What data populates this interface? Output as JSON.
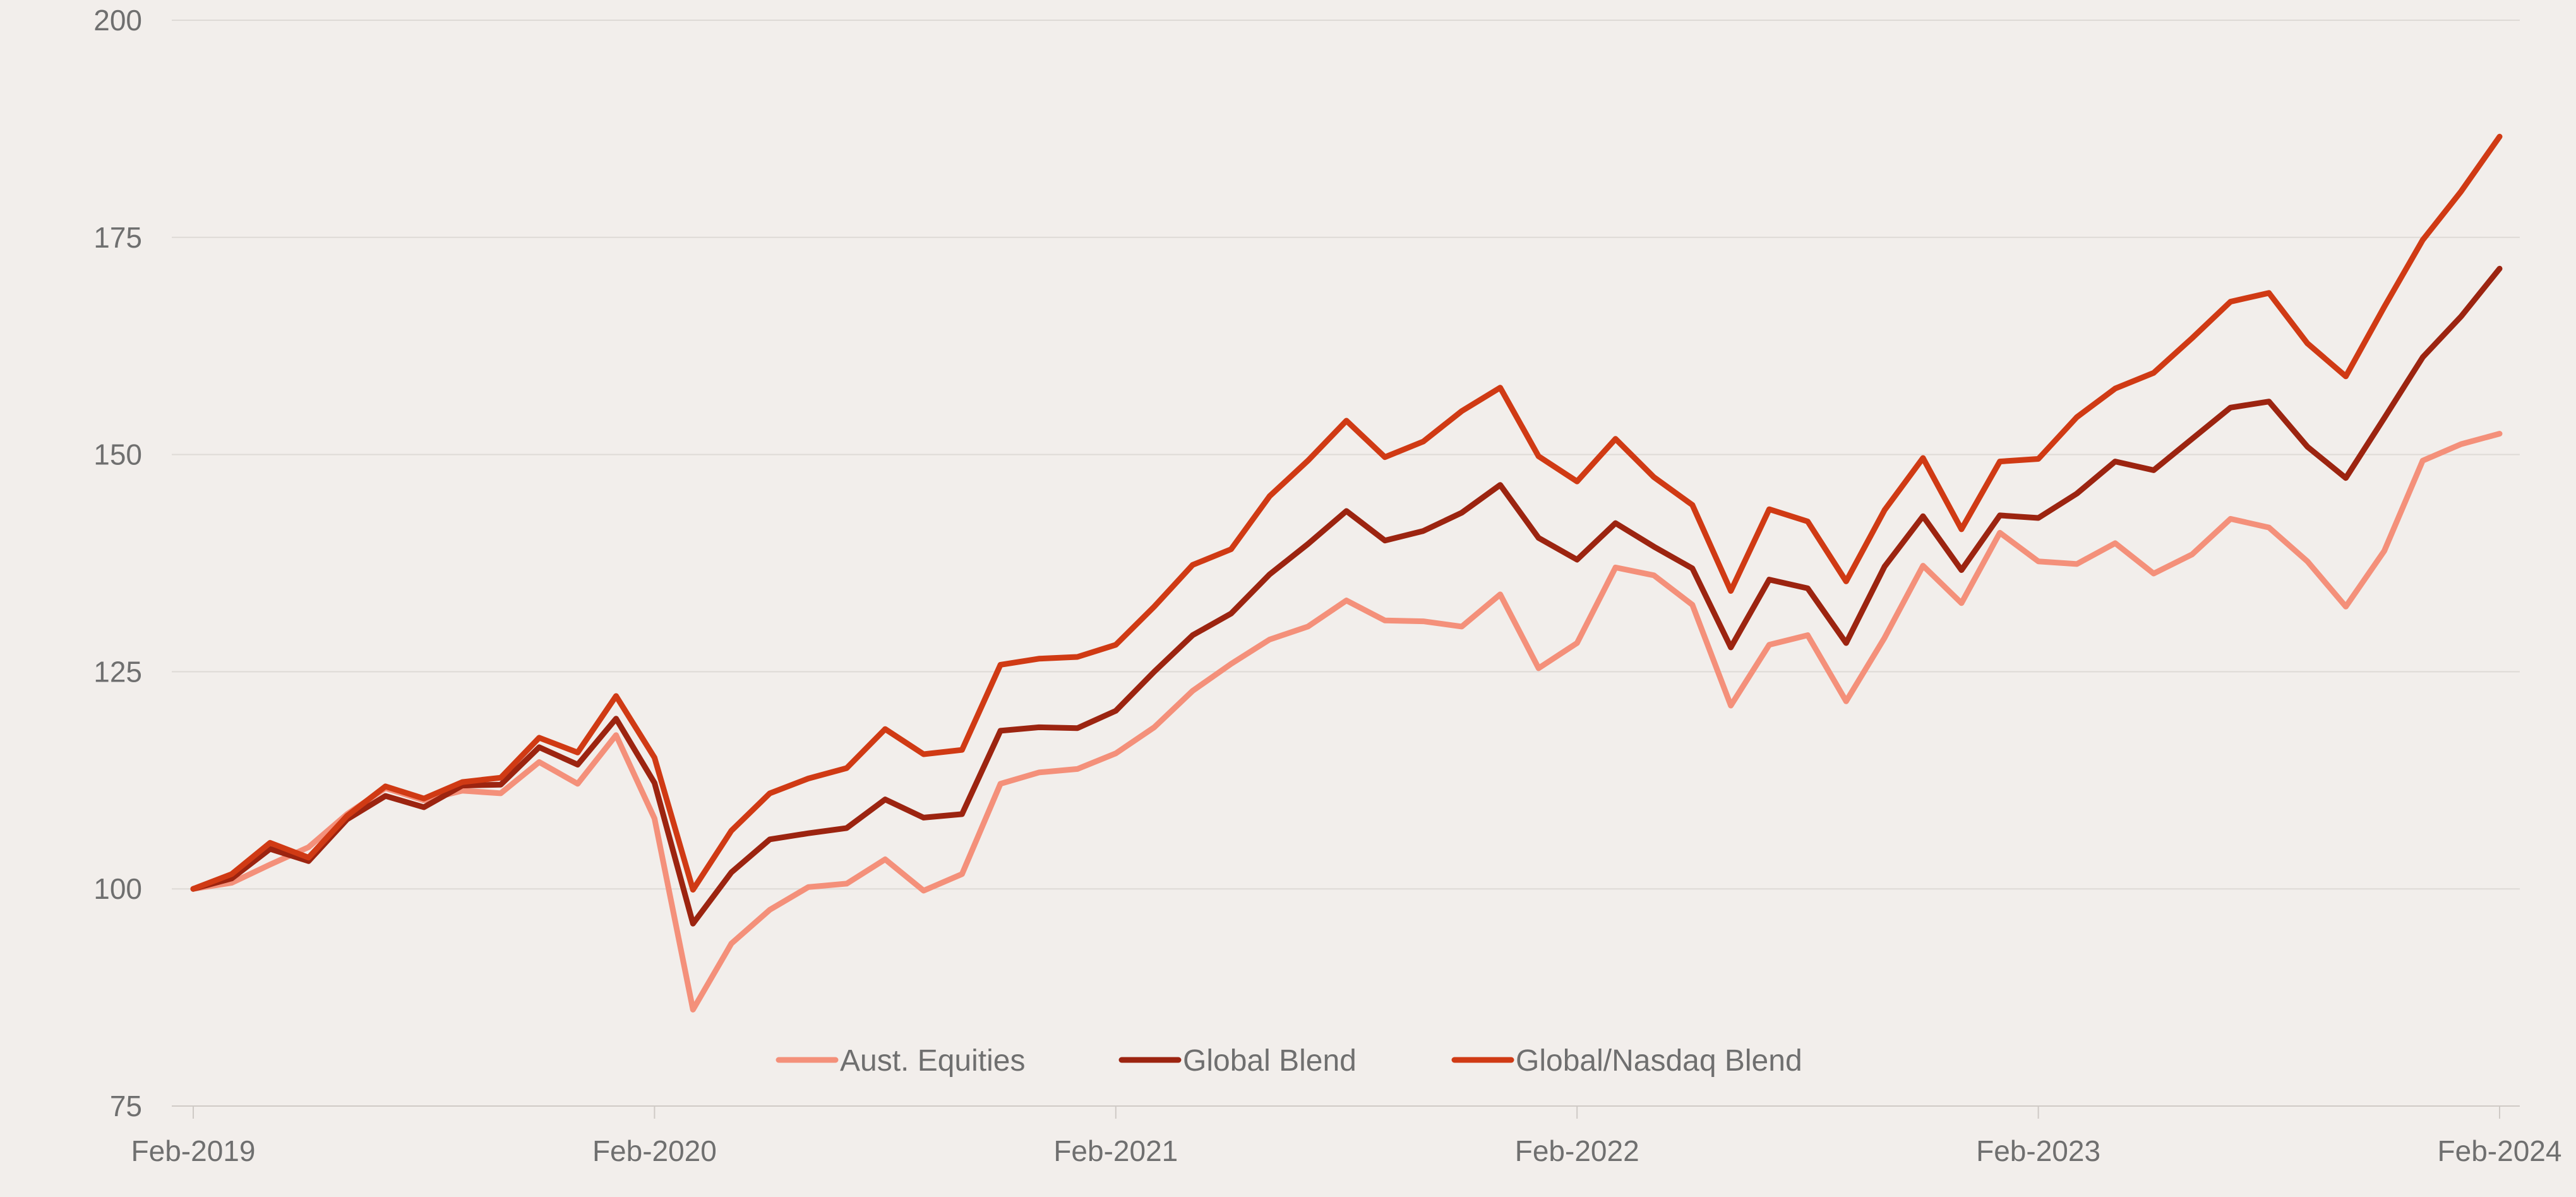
{
  "chart_data": {
    "type": "line",
    "title": "",
    "xlabel": "",
    "ylabel": "",
    "ylim": [
      75,
      200
    ],
    "yticks": [
      75,
      100,
      125,
      150,
      175,
      200
    ],
    "xtick_labels": [
      "Feb-2019",
      "Feb-2020",
      "Feb-2021",
      "Feb-2022",
      "Feb-2023",
      "Feb-2024"
    ],
    "grid": "horizontal",
    "legend_position": "bottom",
    "x": [
      "Feb-2019",
      "Mar-2019",
      "Apr-2019",
      "May-2019",
      "Jun-2019",
      "Jul-2019",
      "Aug-2019",
      "Sep-2019",
      "Oct-2019",
      "Nov-2019",
      "Dec-2019",
      "Jan-2020",
      "Feb-2020",
      "Mar-2020",
      "Apr-2020",
      "May-2020",
      "Jun-2020",
      "Jul-2020",
      "Aug-2020",
      "Sep-2020",
      "Oct-2020",
      "Nov-2020",
      "Dec-2020",
      "Jan-2021",
      "Feb-2021",
      "Mar-2021",
      "Apr-2021",
      "May-2021",
      "Jun-2021",
      "Jul-2021",
      "Aug-2021",
      "Sep-2021",
      "Oct-2021",
      "Nov-2021",
      "Dec-2021",
      "Jan-2022",
      "Feb-2022",
      "Mar-2022",
      "Apr-2022",
      "May-2022",
      "Jun-2022",
      "Jul-2022",
      "Aug-2022",
      "Sep-2022",
      "Oct-2022",
      "Nov-2022",
      "Dec-2022",
      "Jan-2023",
      "Feb-2023",
      "Mar-2023",
      "Apr-2023",
      "May-2023",
      "Jun-2023",
      "Jul-2023",
      "Aug-2023",
      "Sep-2023",
      "Oct-2023",
      "Nov-2023",
      "Dec-2023",
      "Jan-2024",
      "Feb-2024"
    ],
    "series": [
      {
        "name": "Aust. Equities",
        "color": "#f4907a",
        "values": [
          100,
          100.7,
          102.8,
          104.8,
          108.6,
          111.6,
          110.2,
          111.3,
          111.0,
          114.6,
          112.1,
          117.7,
          108.1,
          86.1,
          93.7,
          97.6,
          100.2,
          100.6,
          103.4,
          99.8,
          101.7,
          112.1,
          113.4,
          113.8,
          115.6,
          118.6,
          122.8,
          125.9,
          128.7,
          130.2,
          133.2,
          130.9,
          130.8,
          130.2,
          133.9,
          125.4,
          128.3,
          137.0,
          136.1,
          132.7,
          121.1,
          128.1,
          129.2,
          121.6,
          128.9,
          137.2,
          132.9,
          141.0,
          137.7,
          137.4,
          139.8,
          136.3,
          138.5,
          142.6,
          141.6,
          137.7,
          132.5,
          138.9,
          149.3,
          151.2,
          152.4
        ]
      },
      {
        "name": "Global Blend",
        "color": "#9c2410",
        "values": [
          100,
          101.2,
          104.6,
          103.2,
          108.0,
          110.7,
          109.4,
          111.9,
          112.0,
          116.3,
          114.3,
          119.6,
          112.2,
          96.0,
          101.9,
          105.7,
          106.4,
          107.0,
          110.3,
          108.2,
          108.6,
          118.2,
          118.6,
          118.5,
          120.5,
          125.0,
          129.2,
          131.7,
          136.2,
          139.7,
          143.5,
          140.1,
          141.2,
          143.3,
          146.5,
          140.4,
          137.9,
          142.1,
          139.4,
          136.9,
          127.8,
          135.6,
          134.6,
          128.3,
          137.1,
          142.9,
          136.7,
          143.0,
          142.7,
          145.5,
          149.2,
          148.2,
          151.8,
          155.4,
          156.1,
          150.9,
          147.3,
          154.2,
          161.2,
          165.9,
          171.4
        ]
      },
      {
        "name": "Global/Nasdaq Blend",
        "color": "#d03a14",
        "values": [
          100,
          101.7,
          105.3,
          103.6,
          108.4,
          111.8,
          110.4,
          112.3,
          112.8,
          117.4,
          115.7,
          122.2,
          115.1,
          99.9,
          106.7,
          111.0,
          112.7,
          113.9,
          118.4,
          115.5,
          116.0,
          125.8,
          126.5,
          126.7,
          128.1,
          132.5,
          137.3,
          139.1,
          145.2,
          149.3,
          153.9,
          149.7,
          151.5,
          155.0,
          157.7,
          149.8,
          146.9,
          151.8,
          147.4,
          144.2,
          134.3,
          143.7,
          142.3,
          135.4,
          143.6,
          149.6,
          141.4,
          149.2,
          149.5,
          154.3,
          157.6,
          159.4,
          163.4,
          167.6,
          168.6,
          162.8,
          159.0,
          167.0,
          174.7,
          180.3,
          186.6
        ]
      }
    ]
  }
}
